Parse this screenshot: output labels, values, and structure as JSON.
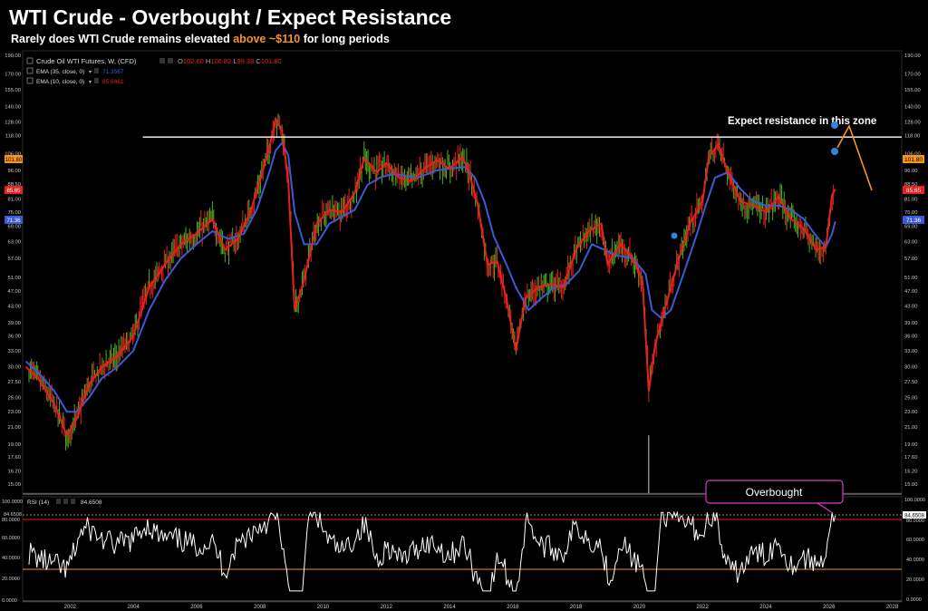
{
  "header": {
    "title": "WTI Crude - Overbought / Expect Resistance",
    "subtitle_pre": "Rarely does WTI Crude remains elevated ",
    "subtitle_hl": "above ~$110",
    "subtitle_post": " for long periods"
  },
  "legend": {
    "symbol": "Crude Oil WTI Futures, W, (CFD)",
    "ohlc": [
      {
        "k": "O",
        "v": "102.60"
      },
      {
        "k": "H",
        "v": "106.82"
      },
      {
        "k": "L",
        "v": "99.38"
      },
      {
        "k": "C",
        "v": "101.80"
      }
    ],
    "ema35_label": "EMA (35, close, 0)",
    "ema35_value": "71.3567",
    "ema10_label": "EMA (10, close, 0)",
    "ema10_value": "85.6461",
    "rsi_label": "RSI (14)",
    "rsi_value": "84.6508"
  },
  "annotations": {
    "resistance": "Expect resistance in this zone",
    "overbought": "Overbought"
  },
  "colors": {
    "background": "#000000",
    "ema35": "#3b5bd6",
    "ema10": "#e8211f",
    "up_candle": "#4caf1f",
    "down_candle": "#e8211f",
    "resistance_line": "#ffffff",
    "rsi_line": "#ffffff",
    "rsi_upper": "#e8211f",
    "rsi_lower": "#f7931e",
    "arrow": "#f7931e",
    "callout": "#d63cc8",
    "marker": "#2e86de"
  },
  "chart_data": {
    "type": "line",
    "subtype": "weekly candlestick with EMA overlays (approximate)",
    "scale": "log",
    "x_ticks": [
      "2002",
      "2004",
      "2006",
      "2008",
      "2010",
      "2012",
      "2014",
      "2016",
      "2018",
      "2020",
      "2022",
      "2024",
      "2026",
      "2028"
    ],
    "y_ticks": [
      "190.00",
      "170.00",
      "155.00",
      "140.00",
      "128.00",
      "118.00",
      "106.00",
      "96.00",
      "88.50",
      "81.00",
      "75.00",
      "69.00",
      "63.00",
      "57.00",
      "51.00",
      "47.00",
      "43.00",
      "39.00",
      "36.00",
      "33.00",
      "30.00",
      "27.50",
      "25.00",
      "23.00",
      "21.00",
      "19.00",
      "17.60",
      "16.20",
      "15.00"
    ],
    "ylim": [
      14.2,
      195
    ],
    "xlim": [
      2000.5,
      2028.3
    ],
    "price_badges": {
      "last": "101.80",
      "ema10": "85.65",
      "ema35": "71.36"
    },
    "resistance_level": 117,
    "series": [
      {
        "name": "EMA (10, close, 0)",
        "x": [
          2000.6,
          2001.0,
          2001.5,
          2001.9,
          2002.2,
          2002.6,
          2003.0,
          2003.5,
          2004.0,
          2004.5,
          2005.0,
          2005.5,
          2006.0,
          2006.5,
          2006.9,
          2007.3,
          2007.7,
          2008.0,
          2008.3,
          2008.5,
          2008.7,
          2008.9,
          2009.1,
          2009.4,
          2009.8,
          2010.2,
          2010.6,
          2011.0,
          2011.3,
          2011.7,
          2012.0,
          2012.4,
          2012.8,
          2013.2,
          2013.6,
          2014.0,
          2014.4,
          2014.6,
          2014.9,
          2015.2,
          2015.5,
          2015.8,
          2016.1,
          2016.4,
          2016.8,
          2017.2,
          2017.6,
          2018.0,
          2018.4,
          2018.8,
          2019.0,
          2019.4,
          2019.8,
          2020.1,
          2020.3,
          2020.5,
          2020.8,
          2021.2,
          2021.6,
          2022.0,
          2022.2,
          2022.5,
          2022.8,
          2023.2,
          2023.6,
          2024.0,
          2024.4,
          2024.8,
          2025.2,
          2025.6,
          2025.9,
          2026.1,
          2026.2
        ],
        "y": [
          30,
          28,
          24,
          20,
          22,
          27,
          30,
          32,
          36,
          48,
          55,
          62,
          66,
          72,
          60,
          64,
          75,
          90,
          110,
          130,
          122,
          90,
          42,
          50,
          70,
          76,
          75,
          84,
          103,
          95,
          100,
          92,
          90,
          97,
          102,
          97,
          104,
          96,
          78,
          55,
          56,
          45,
          33,
          45,
          48,
          49,
          48,
          60,
          67,
          70,
          55,
          62,
          57,
          50,
          26,
          34,
          42,
          55,
          70,
          80,
          104,
          112,
          95,
          80,
          78,
          75,
          82,
          72,
          68,
          60,
          61,
          83,
          86
        ]
      },
      {
        "name": "EMA (35, close, 0)",
        "x": [
          2000.6,
          2001.0,
          2001.5,
          2001.9,
          2002.2,
          2002.6,
          2003.0,
          2003.5,
          2004.0,
          2004.5,
          2005.0,
          2005.5,
          2006.0,
          2006.5,
          2007.0,
          2007.5,
          2007.9,
          2008.3,
          2008.5,
          2008.7,
          2008.9,
          2009.1,
          2009.4,
          2009.8,
          2010.2,
          2010.6,
          2011.0,
          2011.4,
          2011.8,
          2012.2,
          2012.6,
          2013.0,
          2013.6,
          2014.0,
          2014.5,
          2014.8,
          2015.1,
          2015.4,
          2015.8,
          2016.1,
          2016.5,
          2016.9,
          2017.3,
          2017.7,
          2018.1,
          2018.5,
          2018.9,
          2019.3,
          2019.8,
          2020.2,
          2020.4,
          2020.7,
          2021.0,
          2021.4,
          2021.8,
          2022.1,
          2022.4,
          2022.8,
          2023.2,
          2023.6,
          2024.0,
          2024.4,
          2024.8,
          2025.2,
          2025.6,
          2025.9,
          2026.1,
          2026.2
        ],
        "y": [
          31,
          29,
          26,
          23,
          23,
          25,
          28,
          30,
          33,
          42,
          50,
          57,
          62,
          67,
          64,
          66,
          76,
          95,
          108,
          113,
          105,
          75,
          62,
          62,
          70,
          73,
          76,
          88,
          92,
          94,
          93,
          92,
          96,
          97,
          98,
          92,
          80,
          65,
          55,
          48,
          42,
          45,
          48,
          49,
          53,
          62,
          60,
          58,
          57,
          52,
          42,
          40,
          42,
          52,
          65,
          78,
          92,
          95,
          86,
          80,
          78,
          78,
          76,
          72,
          65,
          61,
          66,
          71
        ]
      },
      {
        "name": "RSI (14)",
        "y_last": 84.6508,
        "levels": [
          70,
          30
        ],
        "ylim": [
          0,
          100
        ]
      }
    ]
  }
}
